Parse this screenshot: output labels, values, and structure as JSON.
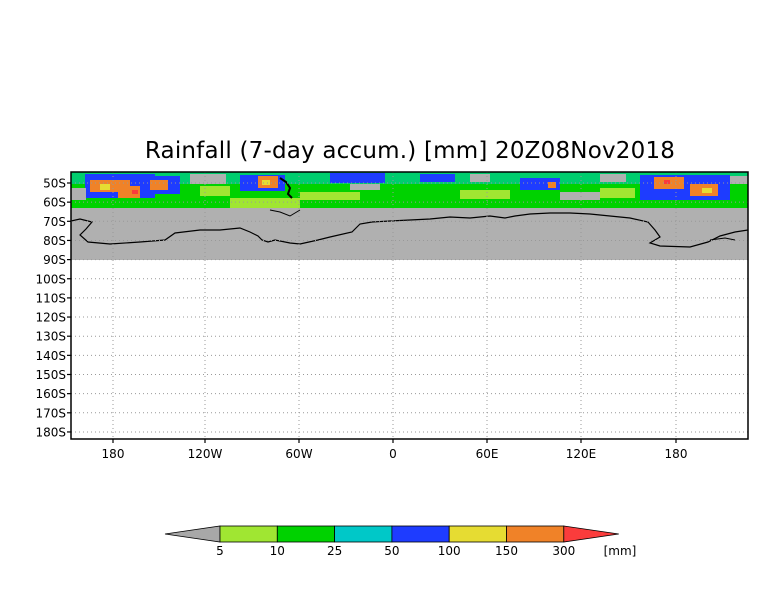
{
  "title": "Rainfall (7-day accum.) [mm] 20Z08Nov2018",
  "map": {
    "projection": "cylindrical",
    "lon_labels": [
      "180",
      "120W",
      "60W",
      "0",
      "60E",
      "120E",
      "180"
    ],
    "lat_labels": [
      "50S",
      "60S",
      "70S",
      "80S",
      "90S",
      "100S",
      "110S",
      "120S",
      "130S",
      "140S",
      "150S",
      "160S",
      "170S",
      "180S"
    ],
    "grid": "dotted",
    "no_data_color": "#b0b0b0",
    "land_outline": "Antarctica coastline"
  },
  "colorbar": {
    "colors": [
      "#a8a8a8",
      "#a0e632",
      "#00d200",
      "#00c8c8",
      "#1e3cff",
      "#e6dc32",
      "#f08228",
      "#fa3c3c"
    ],
    "tick_labels": [
      "5",
      "10",
      "25",
      "50",
      "100",
      "150",
      "300"
    ],
    "units": "[mm]"
  }
}
